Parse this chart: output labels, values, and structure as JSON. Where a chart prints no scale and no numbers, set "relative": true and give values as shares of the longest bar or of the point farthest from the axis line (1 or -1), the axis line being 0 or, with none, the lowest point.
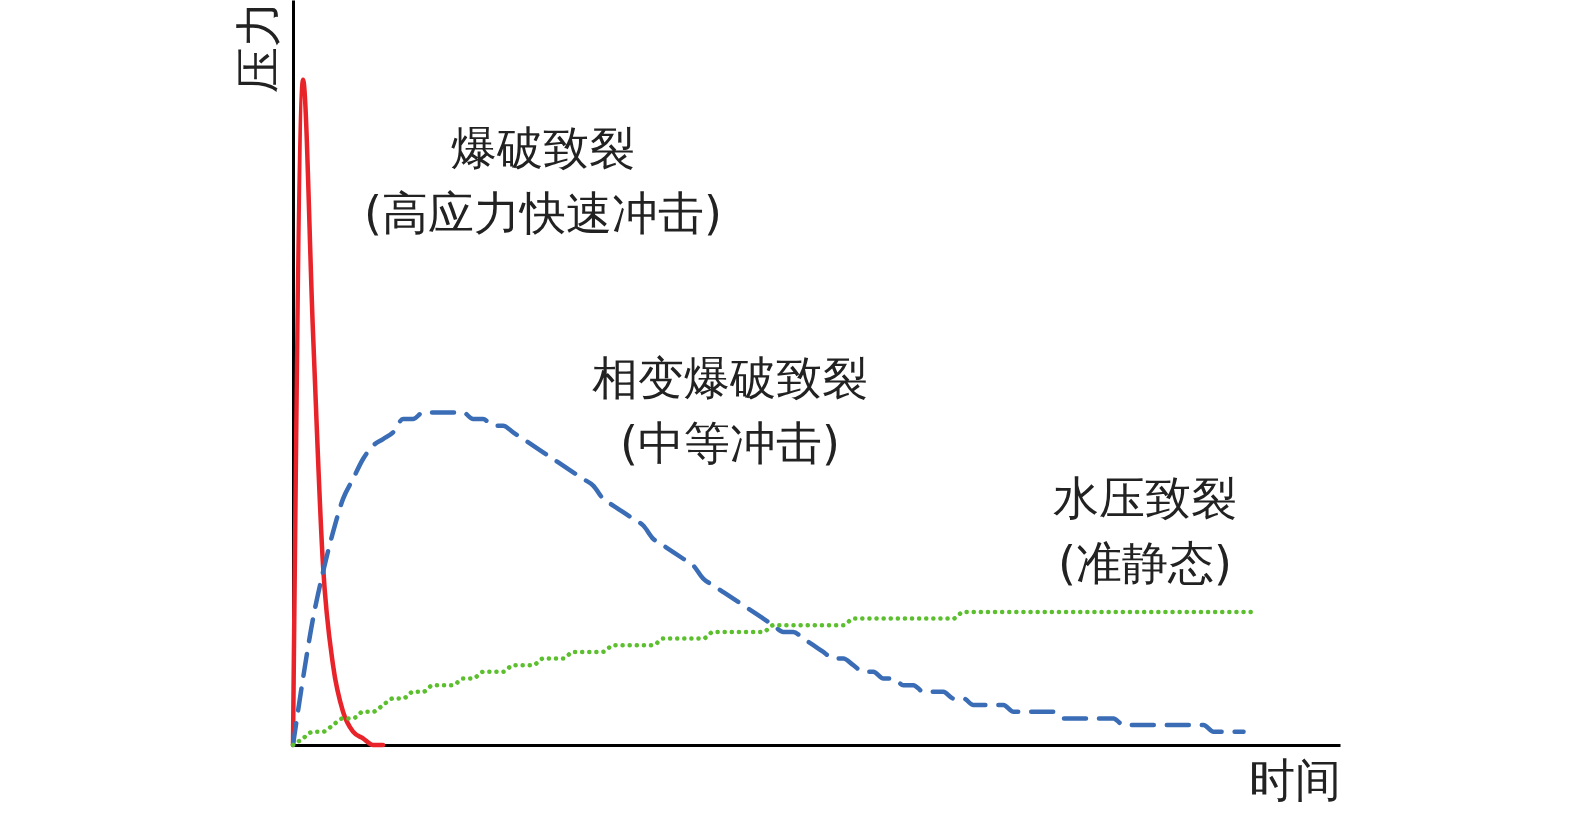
{
  "chart_data": {
    "type": "line",
    "relative": true,
    "xlabel": "时间",
    "ylabel": "压力",
    "grid": false,
    "marker": "none",
    "categories": [
      null,
      null,
      null,
      null,
      null,
      null,
      null,
      null,
      null,
      null,
      null,
      null,
      null,
      null,
      null,
      null,
      null,
      null,
      null,
      null,
      null,
      null,
      null,
      null,
      null,
      null,
      null,
      null,
      null,
      null,
      null,
      null,
      null,
      null,
      null,
      null,
      null,
      null,
      null,
      null,
      null,
      null,
      null,
      null,
      null,
      null,
      null,
      null,
      null,
      null,
      null,
      null,
      null,
      null,
      null,
      null,
      null,
      null,
      null,
      null,
      null,
      null,
      null,
      null,
      null,
      null,
      null,
      null,
      null,
      null,
      null,
      null,
      null,
      null,
      null,
      null,
      null,
      null,
      null,
      null,
      null,
      null,
      null,
      null,
      null,
      null,
      null,
      null,
      null,
      null,
      null,
      null,
      null,
      null,
      null,
      null,
      null
    ],
    "series": [
      {
        "name": "爆破致裂\n(高应力快速冲击)",
        "color": "#e8232a",
        "line_style": "solid",
        "values": [
          0,
          1,
          0.62,
          0.27,
          0.12,
          0.05,
          0.02,
          0.01,
          0,
          0,
          null,
          null,
          null,
          null,
          null,
          null,
          null,
          null,
          null,
          null,
          null,
          null,
          null,
          null,
          null,
          null,
          null,
          null,
          null,
          null,
          null,
          null,
          null,
          null,
          null,
          null,
          null,
          null,
          null,
          null,
          null,
          null,
          null,
          null,
          null,
          null,
          null,
          null,
          null,
          null,
          null,
          null,
          null,
          null,
          null,
          null,
          null,
          null,
          null,
          null,
          null,
          null,
          null,
          null,
          null,
          null,
          null,
          null,
          null,
          null,
          null,
          null,
          null,
          null,
          null,
          null,
          null,
          null,
          null,
          null,
          null,
          null,
          null,
          null,
          null,
          null,
          null,
          null,
          null,
          null,
          null,
          null,
          null,
          null,
          null,
          null,
          null
        ]
      },
      {
        "name": "相变爆破致裂\n(中等冲击)",
        "color": "#3a6db5",
        "line_style": "dashed",
        "values": [
          0,
          0.1,
          0.19,
          0.26,
          0.32,
          0.37,
          0.4,
          0.43,
          0.45,
          0.46,
          0.47,
          0.49,
          0.49,
          0.5,
          0.5,
          0.5,
          0.5,
          0.5,
          0.49,
          0.49,
          0.48,
          0.48,
          0.47,
          0.46,
          0.45,
          0.44,
          0.43,
          0.42,
          0.41,
          0.4,
          0.39,
          0.37,
          0.36,
          0.35,
          0.34,
          0.33,
          0.31,
          0.3,
          0.29,
          0.28,
          0.27,
          0.25,
          0.24,
          0.23,
          0.22,
          0.21,
          0.2,
          0.19,
          0.18,
          0.17,
          0.17,
          0.16,
          0.15,
          0.14,
          0.13,
          0.13,
          0.12,
          0.11,
          0.11,
          0.1,
          0.1,
          0.09,
          0.09,
          0.08,
          0.08,
          0.08,
          0.07,
          0.07,
          0.06,
          0.06,
          0.06,
          0.06,
          0.05,
          0.05,
          0.05,
          0.05,
          0.05,
          0.04,
          0.04,
          0.04,
          0.04,
          0.04,
          0.04,
          0.03,
          0.03,
          0.03,
          0.03,
          0.03,
          0.03,
          0.03,
          0.03,
          0.03,
          0.02,
          0.02,
          0.02,
          0.02,
          null
        ]
      },
      {
        "name": "水压致裂\n(准静态)",
        "color": "#5bbf2e",
        "line_style": "dotted",
        "values": [
          0,
          0.01,
          0.02,
          0.02,
          0.03,
          0.04,
          0.04,
          0.05,
          0.05,
          0.06,
          0.07,
          0.07,
          0.08,
          0.08,
          0.09,
          0.09,
          0.09,
          0.1,
          0.1,
          0.11,
          0.11,
          0.11,
          0.12,
          0.12,
          0.12,
          0.13,
          0.13,
          0.13,
          0.14,
          0.14,
          0.14,
          0.14,
          0.15,
          0.15,
          0.15,
          0.15,
          0.15,
          0.16,
          0.16,
          0.16,
          0.16,
          0.16,
          0.17,
          0.17,
          0.17,
          0.17,
          0.17,
          0.17,
          0.18,
          0.18,
          0.18,
          0.18,
          0.18,
          0.18,
          0.18,
          0.18,
          0.19,
          0.19,
          0.19,
          0.19,
          0.19,
          0.19,
          0.19,
          0.19,
          0.19,
          0.19,
          0.19,
          0.2,
          0.2,
          0.2,
          0.2,
          0.2,
          0.2,
          0.2,
          0.2,
          0.2,
          0.2,
          0.2,
          0.2,
          0.2,
          0.2,
          0.2,
          0.2,
          0.2,
          0.2,
          0.2,
          0.2,
          0.2,
          0.2,
          0.2,
          0.2,
          0.2,
          0.2,
          0.2,
          0.2,
          0.2,
          0.2
        ]
      }
    ]
  }
}
